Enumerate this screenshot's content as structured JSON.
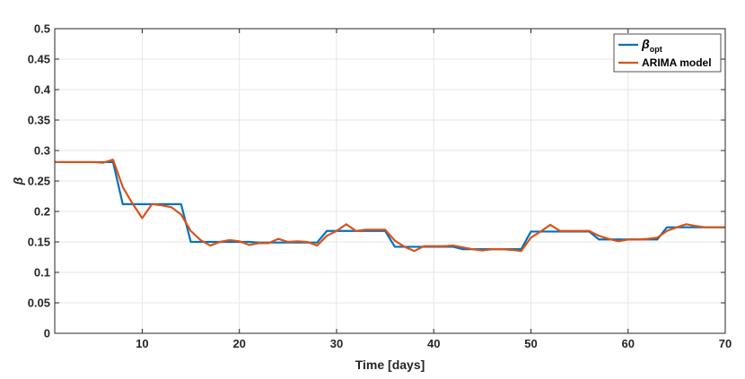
{
  "chart_data": {
    "type": "line",
    "xlabel": "Time [days]",
    "ylabel": "β",
    "xlim": [
      1,
      70
    ],
    "ylim": [
      0,
      0.5
    ],
    "x_ticks": [
      10,
      20,
      30,
      40,
      50,
      60,
      70
    ],
    "y_ticks": [
      0,
      0.05,
      0.1,
      0.15,
      0.2,
      0.25,
      0.3,
      0.35,
      0.4,
      0.45,
      0.5
    ],
    "grid": true,
    "legend_position": "top-right",
    "series": [
      {
        "name": "β",
        "name_subscript": "opt",
        "color": "#0072BD",
        "points": [
          [
            1,
            0.281
          ],
          [
            6,
            0.281
          ],
          [
            7,
            0.281
          ],
          [
            8,
            0.212
          ],
          [
            14,
            0.212
          ],
          [
            15,
            0.15
          ],
          [
            21,
            0.15
          ],
          [
            22,
            0.149
          ],
          [
            28,
            0.149
          ],
          [
            29,
            0.168
          ],
          [
            35,
            0.168
          ],
          [
            36,
            0.142
          ],
          [
            42,
            0.142
          ],
          [
            43,
            0.138
          ],
          [
            49,
            0.138
          ],
          [
            50,
            0.167
          ],
          [
            56,
            0.167
          ],
          [
            57,
            0.154
          ],
          [
            63,
            0.154
          ],
          [
            64,
            0.174
          ],
          [
            70,
            0.174
          ]
        ]
      },
      {
        "name": "ARIMA model",
        "color": "#D95319",
        "points": [
          [
            1,
            0.281
          ],
          [
            2,
            0.281
          ],
          [
            3,
            0.281
          ],
          [
            4,
            0.281
          ],
          [
            5,
            0.281
          ],
          [
            6,
            0.28
          ],
          [
            7,
            0.285
          ],
          [
            8,
            0.24
          ],
          [
            9,
            0.213
          ],
          [
            10,
            0.189
          ],
          [
            11,
            0.212
          ],
          [
            12,
            0.21
          ],
          [
            13,
            0.207
          ],
          [
            14,
            0.195
          ],
          [
            15,
            0.168
          ],
          [
            16,
            0.153
          ],
          [
            17,
            0.144
          ],
          [
            18,
            0.15
          ],
          [
            19,
            0.153
          ],
          [
            20,
            0.151
          ],
          [
            21,
            0.145
          ],
          [
            22,
            0.148
          ],
          [
            23,
            0.148
          ],
          [
            24,
            0.155
          ],
          [
            25,
            0.15
          ],
          [
            26,
            0.151
          ],
          [
            27,
            0.15
          ],
          [
            28,
            0.144
          ],
          [
            29,
            0.16
          ],
          [
            30,
            0.168
          ],
          [
            31,
            0.179
          ],
          [
            32,
            0.168
          ],
          [
            33,
            0.17
          ],
          [
            34,
            0.17
          ],
          [
            35,
            0.17
          ],
          [
            36,
            0.152
          ],
          [
            37,
            0.142
          ],
          [
            38,
            0.135
          ],
          [
            39,
            0.143
          ],
          [
            40,
            0.143
          ],
          [
            41,
            0.143
          ],
          [
            42,
            0.144
          ],
          [
            43,
            0.141
          ],
          [
            44,
            0.138
          ],
          [
            45,
            0.136
          ],
          [
            46,
            0.138
          ],
          [
            47,
            0.138
          ],
          [
            48,
            0.137
          ],
          [
            49,
            0.135
          ],
          [
            50,
            0.157
          ],
          [
            51,
            0.167
          ],
          [
            52,
            0.178
          ],
          [
            53,
            0.168
          ],
          [
            54,
            0.168
          ],
          [
            55,
            0.168
          ],
          [
            56,
            0.168
          ],
          [
            57,
            0.16
          ],
          [
            58,
            0.155
          ],
          [
            59,
            0.151
          ],
          [
            60,
            0.154
          ],
          [
            61,
            0.154
          ],
          [
            62,
            0.155
          ],
          [
            63,
            0.157
          ],
          [
            64,
            0.168
          ],
          [
            65,
            0.174
          ],
          [
            66,
            0.179
          ],
          [
            67,
            0.176
          ],
          [
            68,
            0.174
          ],
          [
            69,
            0.174
          ],
          [
            70,
            0.174
          ]
        ]
      }
    ]
  }
}
